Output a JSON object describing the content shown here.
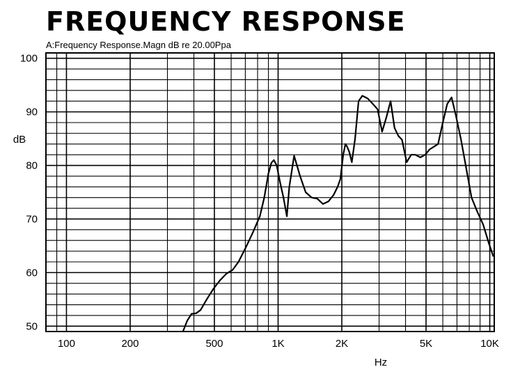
{
  "header": {
    "title": "FREQUENCY RESPONSE",
    "subtitle": "A:Frequency Response.Magn dB re 20.00Ppa"
  },
  "chart_data": {
    "type": "line",
    "title": "FREQUENCY RESPONSE",
    "subtitle": "A:Frequency Response.Magn dB re 20.00Ppa",
    "xlabel": "Hz",
    "ylabel": "dB",
    "xscale": "log",
    "xlim": [
      80,
      10500
    ],
    "ylim": [
      49,
      101
    ],
    "grid": true,
    "line_color": "#000000",
    "x_ticks": [
      {
        "value": 100,
        "label": "100"
      },
      {
        "value": 200,
        "label": "200"
      },
      {
        "value": 500,
        "label": "500"
      },
      {
        "value": 1000,
        "label": "1K"
      },
      {
        "value": 2000,
        "label": "2K"
      },
      {
        "value": 5000,
        "label": "5K"
      },
      {
        "value": 10000,
        "label": "10K"
      }
    ],
    "y_ticks": [
      {
        "value": 50,
        "label": "50"
      },
      {
        "value": 60,
        "label": "60"
      },
      {
        "value": 70,
        "label": "70"
      },
      {
        "value": 80,
        "label": "80"
      },
      {
        "value": 90,
        "label": "90"
      },
      {
        "value": 100,
        "label": "100"
      }
    ],
    "series": [
      {
        "x": [
          355,
          372,
          390,
          410,
          430,
          460,
          495,
          530,
          570,
          610,
          650,
          700,
          760,
          820,
          860,
          900,
          930,
          955,
          985,
          1020,
          1060,
          1100,
          1130,
          1190,
          1270,
          1350,
          1440,
          1530,
          1630,
          1730,
          1830,
          1910,
          1970,
          2030,
          2080,
          2120,
          2170,
          2230,
          2310,
          2400,
          2500,
          2650,
          2800,
          2950,
          3100,
          3250,
          3400,
          3550,
          3700,
          3850,
          4050,
          4250,
          4450,
          4700,
          4950,
          5200,
          5450,
          5700,
          6000,
          6300,
          6600,
          6900,
          7300,
          7700,
          8200,
          8700,
          9300,
          9900,
          10400
        ],
        "y": [
          49,
          51,
          52.3,
          52.4,
          53,
          55,
          57,
          58.5,
          59.8,
          60.5,
          62,
          64.5,
          67.5,
          70.5,
          74,
          78.5,
          80.5,
          81,
          80,
          77,
          74,
          70.5,
          76,
          81.8,
          78,
          75,
          74,
          73.8,
          72.8,
          73.3,
          74.5,
          76,
          77.5,
          82,
          84,
          83.5,
          82.5,
          80.6,
          85,
          92,
          93,
          92.5,
          91.5,
          90.5,
          86.3,
          89,
          92,
          87,
          85.5,
          84.8,
          80.6,
          82,
          82,
          81.5,
          82,
          83,
          83.5,
          84,
          88,
          91.5,
          92.7,
          89.5,
          85,
          80,
          74,
          71.5,
          69,
          65.5,
          63
        ]
      }
    ]
  }
}
